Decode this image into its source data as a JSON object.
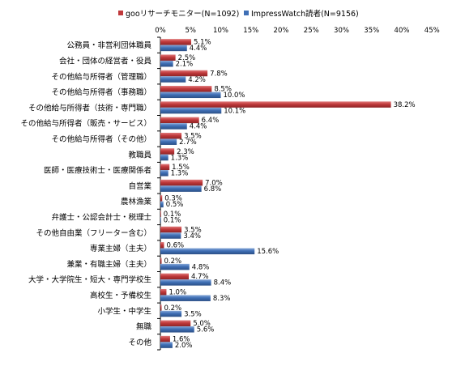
{
  "chart_data": {
    "type": "bar",
    "orientation": "horizontal",
    "xlim": [
      0,
      45
    ],
    "x_ticks": [
      "0%",
      "5%",
      "10%",
      "15%",
      "20%",
      "25%",
      "30%",
      "35%",
      "40%",
      "45%"
    ],
    "legend_position": "top",
    "grid": false,
    "categories": [
      "公務員・非営利団体職員",
      "会社・団体の経営者・役員",
      "その他給与所得者（管理職）",
      "その他給与所得者（事務職）",
      "その他給与所得者（技術・専門職）",
      "その他給与所得者（販売・サービス）",
      "その他給与所得者（その他）",
      "教職員",
      "医師・医療技術士・医療関係者",
      "自営業",
      "農林漁業",
      "弁護士・公認会計士・税理士",
      "その他自由業（フリーター含む）",
      "専業主婦（主夫）",
      "兼業・有職主婦（主夫）",
      "大学・大学院生・短大・専門学校生",
      "高校生・予備校生",
      "小学生・中学生",
      "無職",
      "その他"
    ],
    "series": [
      {
        "name": "gooリサーチモニター(N=1092)",
        "color": "#c0393b",
        "values": [
          5.1,
          2.5,
          7.8,
          8.5,
          38.2,
          6.4,
          3.5,
          2.3,
          1.5,
          7.0,
          0.3,
          0.1,
          3.5,
          0.6,
          0.2,
          4.7,
          1.0,
          0.2,
          5.0,
          1.6
        ],
        "labels": [
          "5.1%",
          "2.5%",
          "7.8%",
          "8.5%",
          "38.2%",
          "6.4%",
          "3.5%",
          "2.3%",
          "1.5%",
          "7.0%",
          "0.3%",
          "0.1%",
          "3.5%",
          "0.6%",
          "0.2%",
          "4.7%",
          "1.0%",
          "0.2%",
          "5.0%",
          "1.6%"
        ]
      },
      {
        "name": "ImpressWatch読者(N=9156)",
        "color": "#3f6fb5",
        "values": [
          4.4,
          2.1,
          4.2,
          10.0,
          10.1,
          4.4,
          2.7,
          1.3,
          1.3,
          6.8,
          0.5,
          0.1,
          3.4,
          15.6,
          4.8,
          8.4,
          8.3,
          3.5,
          5.6,
          2.0
        ],
        "labels": [
          "4.4%",
          "2.1%",
          "4.2%",
          "10.0%",
          "10.1%",
          "4.4%",
          "2.7%",
          "1.3%",
          "1.3%",
          "6.8%",
          "0.5%",
          "0.1%",
          "3.4%",
          "15.6%",
          "4.8%",
          "8.4%",
          "8.3%",
          "3.5%",
          "5.6%",
          "2.0%"
        ]
      }
    ]
  }
}
